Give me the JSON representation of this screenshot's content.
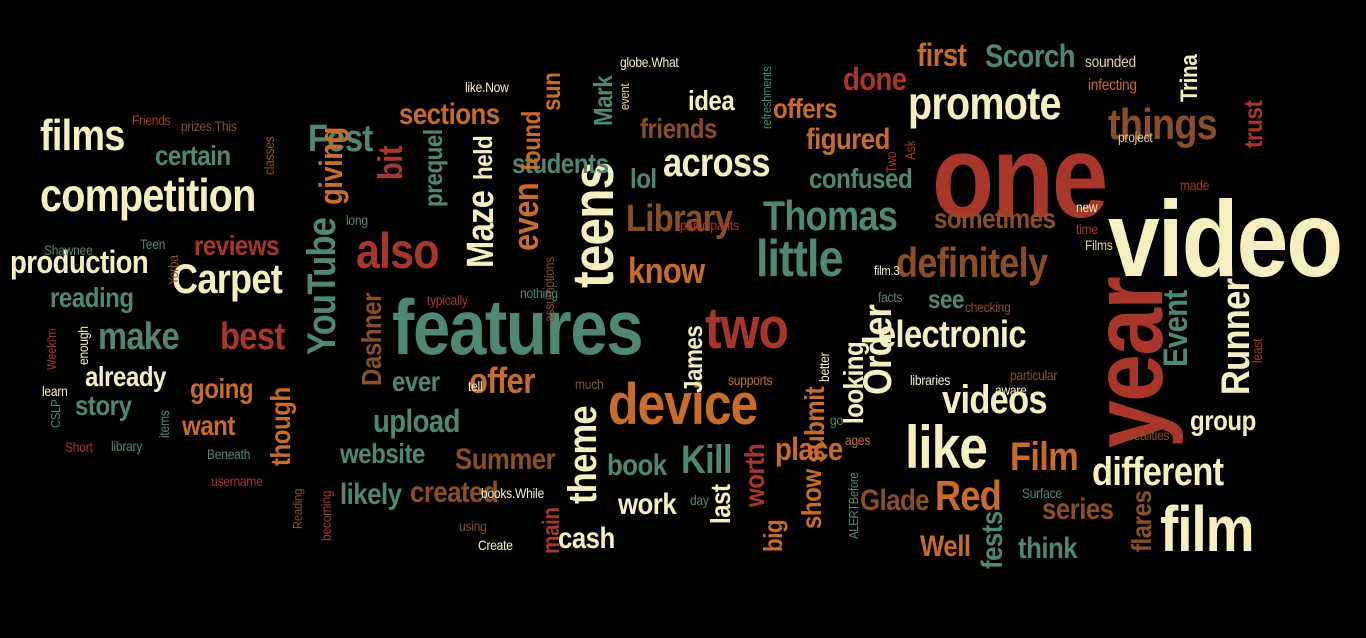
{
  "palette": {
    "cream": "#f8efc0",
    "teal": "#4e8870",
    "orange": "#c86c2b",
    "red": "#a8362a",
    "brown": "#8c4e26",
    "beige": "#e4d29a",
    "background": "#000000"
  },
  "words": [
    {
      "t": "one",
      "c": "red",
      "s": 118,
      "r": 0
    },
    {
      "t": "video",
      "c": "cream",
      "s": 108,
      "r": 0
    },
    {
      "t": "year",
      "c": "red",
      "s": 100,
      "r": -90
    },
    {
      "t": "features",
      "c": "teal",
      "s": 78,
      "r": 0
    },
    {
      "t": "teens",
      "c": "cream",
      "s": 58,
      "r": -90
    },
    {
      "t": "device",
      "c": "orange",
      "s": 58,
      "r": 0
    },
    {
      "t": "two",
      "c": "red",
      "s": 58,
      "r": 0
    },
    {
      "t": "like",
      "c": "cream",
      "s": 60,
      "r": 0
    },
    {
      "t": "film",
      "c": "cream",
      "s": 64,
      "r": 0
    },
    {
      "t": "little",
      "c": "teal",
      "s": 52,
      "r": 0
    },
    {
      "t": "promote",
      "c": "cream",
      "s": 46,
      "r": 0
    },
    {
      "t": "competition",
      "c": "cream",
      "s": 46,
      "r": 0
    },
    {
      "t": "Thomas",
      "c": "teal",
      "s": 42,
      "r": 0
    },
    {
      "t": "also",
      "c": "red",
      "s": 50,
      "r": 0
    },
    {
      "t": "films",
      "c": "cream",
      "s": 44,
      "r": 0
    },
    {
      "t": "definitely",
      "c": "brown",
      "s": 42,
      "r": 0
    },
    {
      "t": "things",
      "c": "brown",
      "s": 44,
      "r": 0
    },
    {
      "t": "Carpet",
      "c": "cream",
      "s": 42,
      "r": 0
    },
    {
      "t": "across",
      "c": "cream",
      "s": 40,
      "r": 0
    },
    {
      "t": "electronic",
      "c": "cream",
      "s": 38,
      "r": 0
    },
    {
      "t": "YouTube",
      "c": "teal",
      "s": 40,
      "r": -90
    },
    {
      "t": "Library",
      "c": "brown",
      "s": 38,
      "r": 0
    },
    {
      "t": "Runner",
      "c": "cream",
      "s": 40,
      "r": -90
    },
    {
      "t": "videos",
      "c": "cream",
      "s": 40,
      "r": 0
    },
    {
      "t": "Maze",
      "c": "cream",
      "s": 38,
      "r": -90
    },
    {
      "t": "theme",
      "c": "cream",
      "s": 40,
      "r": -90
    },
    {
      "t": "different",
      "c": "cream",
      "s": 40,
      "r": 0
    },
    {
      "t": "Order",
      "c": "cream",
      "s": 40,
      "r": -90
    },
    {
      "t": "Red",
      "c": "orange",
      "s": 42,
      "r": 0
    },
    {
      "t": "Film",
      "c": "orange",
      "s": 40,
      "r": 0
    },
    {
      "t": "Kill",
      "c": "teal",
      "s": 40,
      "r": 0
    },
    {
      "t": "Fest",
      "c": "teal",
      "s": 38,
      "r": 0
    },
    {
      "t": "make",
      "c": "teal",
      "s": 38,
      "r": 0
    },
    {
      "t": "best",
      "c": "red",
      "s": 38,
      "r": 0
    },
    {
      "t": "know",
      "c": "orange",
      "s": 36,
      "r": 0
    },
    {
      "t": "offer",
      "c": "orange",
      "s": 36,
      "r": 0
    },
    {
      "t": "even",
      "c": "orange",
      "s": 36,
      "r": -90
    },
    {
      "t": "Event",
      "c": "teal",
      "s": 34,
      "r": -90
    },
    {
      "t": "giving",
      "c": "orange",
      "s": 32,
      "r": -90
    },
    {
      "t": "bit",
      "c": "red",
      "s": 34,
      "r": -90
    },
    {
      "t": "production",
      "c": "cream",
      "s": 32,
      "r": 0
    },
    {
      "t": "certain",
      "c": "teal",
      "s": 28,
      "r": 0
    },
    {
      "t": "reviews",
      "c": "red",
      "s": 28,
      "r": 0
    },
    {
      "t": "reading",
      "c": "teal",
      "s": 28,
      "r": 0
    },
    {
      "t": "already",
      "c": "cream",
      "s": 28,
      "r": 0
    },
    {
      "t": "story",
      "c": "teal",
      "s": 28,
      "r": 0
    },
    {
      "t": "going",
      "c": "orange",
      "s": 28,
      "r": 0
    },
    {
      "t": "want",
      "c": "orange",
      "s": 28,
      "r": 0
    },
    {
      "t": "though",
      "c": "orange",
      "s": 28,
      "r": -90
    },
    {
      "t": "Dashner",
      "c": "brown",
      "s": 28,
      "r": -90
    },
    {
      "t": "ever",
      "c": "teal",
      "s": 28,
      "r": 0
    },
    {
      "t": "upload",
      "c": "teal",
      "s": 32,
      "r": 0
    },
    {
      "t": "website",
      "c": "teal",
      "s": 28,
      "r": 0
    },
    {
      "t": "likely",
      "c": "teal",
      "s": 30,
      "r": 0
    },
    {
      "t": "created",
      "c": "brown",
      "s": 30,
      "r": 0
    },
    {
      "t": "Summer",
      "c": "brown",
      "s": 30,
      "r": 0
    },
    {
      "t": "book",
      "c": "teal",
      "s": 30,
      "r": 0
    },
    {
      "t": "work",
      "c": "cream",
      "s": 30,
      "r": 0
    },
    {
      "t": "cash",
      "c": "cream",
      "s": 30,
      "r": 0
    },
    {
      "t": "last",
      "c": "cream",
      "s": 28,
      "r": -90
    },
    {
      "t": "worth",
      "c": "red",
      "s": 28,
      "r": -90
    },
    {
      "t": "big",
      "c": "orange",
      "s": 26,
      "r": -90
    },
    {
      "t": "show",
      "c": "orange",
      "s": 28,
      "r": -90
    },
    {
      "t": "submit",
      "c": "orange",
      "s": 28,
      "r": -90
    },
    {
      "t": "place",
      "c": "orange",
      "s": 32,
      "r": 0
    },
    {
      "t": "looking",
      "c": "cream",
      "s": 28,
      "r": -90
    },
    {
      "t": "Glade",
      "c": "brown",
      "s": 30,
      "r": 0
    },
    {
      "t": "Well",
      "c": "orange",
      "s": 30,
      "r": 0
    },
    {
      "t": "think",
      "c": "teal",
      "s": 30,
      "r": 0
    },
    {
      "t": "fests",
      "c": "teal",
      "s": 30,
      "r": -90
    },
    {
      "t": "series",
      "c": "brown",
      "s": 30,
      "r": 0
    },
    {
      "t": "flares",
      "c": "brown",
      "s": 28,
      "r": -90
    },
    {
      "t": "group",
      "c": "cream",
      "s": 28,
      "r": 0
    },
    {
      "t": "see",
      "c": "teal",
      "s": 26,
      "r": 0
    },
    {
      "t": "sometimes",
      "c": "brown",
      "s": 28,
      "r": 0
    },
    {
      "t": "confused",
      "c": "teal",
      "s": 28,
      "r": 0
    },
    {
      "t": "figured",
      "c": "orange",
      "s": 30,
      "r": 0
    },
    {
      "t": "friends",
      "c": "brown",
      "s": 28,
      "r": 0
    },
    {
      "t": "offers",
      "c": "orange",
      "s": 28,
      "r": 0
    },
    {
      "t": "idea",
      "c": "cream",
      "s": 28,
      "r": 0
    },
    {
      "t": "lol",
      "c": "teal",
      "s": 28,
      "r": 0
    },
    {
      "t": "students",
      "c": "teal",
      "s": 28,
      "r": 0
    },
    {
      "t": "found",
      "c": "orange",
      "s": 26,
      "r": -90
    },
    {
      "t": "sun",
      "c": "orange",
      "s": 26,
      "r": -90
    },
    {
      "t": "sections",
      "c": "orange",
      "s": 30,
      "r": 0
    },
    {
      "t": "held",
      "c": "cream",
      "s": 26,
      "r": -90
    },
    {
      "t": "prequel",
      "c": "teal",
      "s": 26,
      "r": -90
    },
    {
      "t": "Mark",
      "c": "teal",
      "s": 26,
      "r": -90
    },
    {
      "t": "James",
      "c": "cream",
      "s": 26,
      "r": -90
    },
    {
      "t": "done",
      "c": "red",
      "s": 32,
      "r": 0
    },
    {
      "t": "first",
      "c": "orange",
      "s": 32,
      "r": 0
    },
    {
      "t": "Scorch",
      "c": "teal",
      "s": 32,
      "r": 0
    },
    {
      "t": "trust",
      "c": "red",
      "s": 26,
      "r": -90
    },
    {
      "t": "Trina",
      "c": "cream",
      "s": 24,
      "r": -90
    },
    {
      "t": "main",
      "c": "red",
      "s": 24,
      "r": -90
    },
    {
      "t": "sounded",
      "c": "beige",
      "s": 16,
      "r": 0
    },
    {
      "t": "infecting",
      "c": "orange",
      "s": 16,
      "r": 0
    },
    {
      "t": "project",
      "c": "beige",
      "s": 14,
      "r": 0
    },
    {
      "t": "made",
      "c": "red",
      "s": 14,
      "r": 0
    },
    {
      "t": "Films",
      "c": "beige",
      "s": 14,
      "r": 0
    },
    {
      "t": "time",
      "c": "red",
      "s": 14,
      "r": 0
    },
    {
      "t": "new",
      "c": "cream",
      "s": 14,
      "r": 0
    },
    {
      "t": "film.3",
      "c": "cream",
      "s": 13,
      "r": 0
    },
    {
      "t": "facts",
      "c": "teal",
      "s": 14,
      "r": 0
    },
    {
      "t": "checking",
      "c": "brown",
      "s": 14,
      "r": 0
    },
    {
      "t": "least",
      "c": "red",
      "s": 14,
      "r": -90
    },
    {
      "t": "particular",
      "c": "brown",
      "s": 14,
      "r": 0
    },
    {
      "t": "aware",
      "c": "cream",
      "s": 14,
      "r": 0
    },
    {
      "t": "better",
      "c": "cream",
      "s": 14,
      "r": -90
    },
    {
      "t": "libraries",
      "c": "cream",
      "s": 14,
      "r": 0
    },
    {
      "t": "supports",
      "c": "orange",
      "s": 14,
      "r": 0
    },
    {
      "t": "go",
      "c": "teal",
      "s": 14,
      "r": 0
    },
    {
      "t": "ages",
      "c": "orange",
      "s": 14,
      "r": 0
    },
    {
      "t": "realities",
      "c": "brown",
      "s": 14,
      "r": 0
    },
    {
      "t": "Surface",
      "c": "teal",
      "s": 14,
      "r": 0
    },
    {
      "t": "ALERTBefore",
      "c": "teal",
      "s": 13,
      "r": -90
    },
    {
      "t": "day",
      "c": "teal",
      "s": 14,
      "r": 0
    },
    {
      "t": "using",
      "c": "brown",
      "s": 14,
      "r": 0
    },
    {
      "t": "Create",
      "c": "cream",
      "s": 14,
      "r": 0
    },
    {
      "t": "books.While",
      "c": "cream",
      "s": 14,
      "r": 0
    },
    {
      "t": "tell",
      "c": "cream",
      "s": 14,
      "r": 0
    },
    {
      "t": "much",
      "c": "brown",
      "s": 14,
      "r": 0
    },
    {
      "t": "typically",
      "c": "red",
      "s": 14,
      "r": 0
    },
    {
      "t": "nothing",
      "c": "teal",
      "s": 14,
      "r": 0
    },
    {
      "t": "assumptions",
      "c": "brown",
      "s": 14,
      "r": -90
    },
    {
      "t": "participants",
      "c": "red",
      "s": 14,
      "r": 0
    },
    {
      "t": "Two",
      "c": "red",
      "s": 14,
      "r": -90
    },
    {
      "t": "Ask",
      "c": "red",
      "s": 14,
      "r": -90
    },
    {
      "t": "refreshments",
      "c": "teal",
      "s": 13,
      "r": -90
    },
    {
      "t": "event",
      "c": "beige",
      "s": 13,
      "r": -90
    },
    {
      "t": "globe.What",
      "c": "cream",
      "s": 14,
      "r": 0
    },
    {
      "t": "like.Now",
      "c": "cream",
      "s": 14,
      "r": 0
    },
    {
      "t": "Friends",
      "c": "red",
      "s": 14,
      "r": 0
    },
    {
      "t": "prizes.This",
      "c": "brown",
      "s": 14,
      "r": 0
    },
    {
      "t": "classes",
      "c": "brown",
      "s": 14,
      "r": -90
    },
    {
      "t": "long",
      "c": "teal",
      "s": 14,
      "r": 0
    },
    {
      "t": "Teen",
      "c": "teal",
      "s": 14,
      "r": 0
    },
    {
      "t": "Shawnee",
      "c": "teal",
      "s": 14,
      "r": 0
    },
    {
      "t": "Yorba",
      "c": "brown",
      "s": 14,
      "r": -90
    },
    {
      "t": "enough",
      "c": "cream",
      "s": 14,
      "r": -90
    },
    {
      "t": "WeekI'm",
      "c": "red",
      "s": 13,
      "r": -90
    },
    {
      "t": "learn",
      "c": "cream",
      "s": 14,
      "r": 0
    },
    {
      "t": "CSLP",
      "c": "teal",
      "s": 13,
      "r": -90
    },
    {
      "t": "Short",
      "c": "red",
      "s": 14,
      "r": 0
    },
    {
      "t": "library",
      "c": "teal",
      "s": 14,
      "r": 0
    },
    {
      "t": "items",
      "c": "teal",
      "s": 14,
      "r": -90
    },
    {
      "t": "Beneath",
      "c": "teal",
      "s": 14,
      "r": 0
    },
    {
      "t": "username",
      "c": "red",
      "s": 14,
      "r": 0
    },
    {
      "t": "Reading",
      "c": "brown",
      "s": 13,
      "r": -90
    },
    {
      "t": "becoming",
      "c": "red",
      "s": 14,
      "r": -90
    }
  ]
}
